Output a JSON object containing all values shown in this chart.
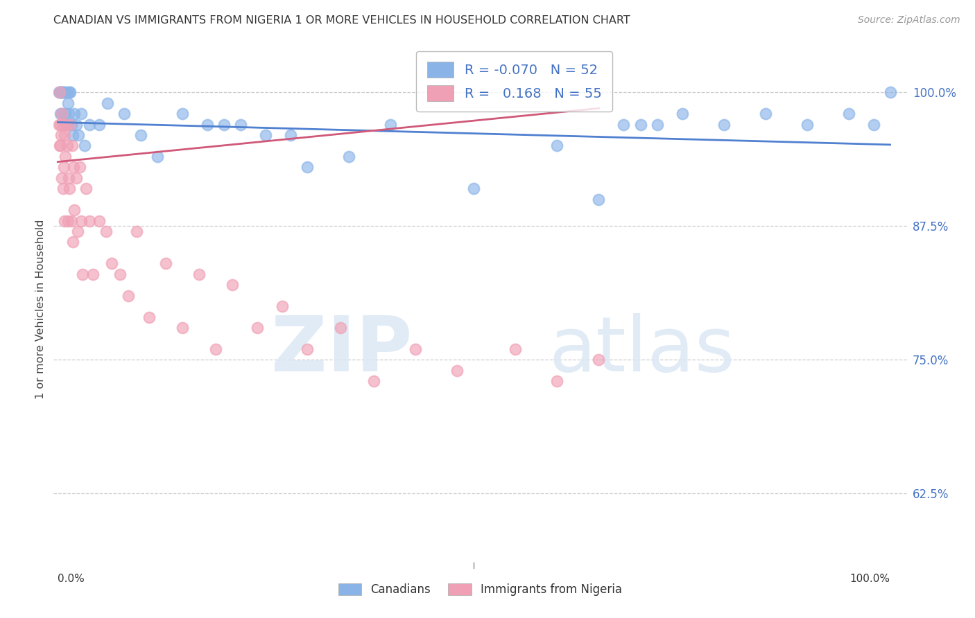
{
  "title": "CANADIAN VS IMMIGRANTS FROM NIGERIA 1 OR MORE VEHICLES IN HOUSEHOLD CORRELATION CHART",
  "source": "Source: ZipAtlas.com",
  "ylabel": "1 or more Vehicles in Household",
  "ytick_labels": [
    "62.5%",
    "75.0%",
    "87.5%",
    "100.0%"
  ],
  "ytick_vals": [
    0.625,
    0.75,
    0.875,
    1.0
  ],
  "legend_r_canadian": "-0.070",
  "legend_n_canadian": "52",
  "legend_r_nigerian": "0.168",
  "legend_n_nigerian": "55",
  "canadian_color": "#8ab4e8",
  "nigerian_color": "#f0a0b5",
  "canadian_line_color": "#5080d0",
  "nigerian_line_color": "#d05878",
  "watermark_zip": "ZIP",
  "watermark_atlas": "atlas",
  "background_color": "#ffffff",
  "can_x": [
    0.001,
    0.002,
    0.003,
    0.003,
    0.004,
    0.005,
    0.005,
    0.006,
    0.007,
    0.008,
    0.009,
    0.01,
    0.011,
    0.012,
    0.013,
    0.014,
    0.015,
    0.016,
    0.018,
    0.02,
    0.022,
    0.025,
    0.028,
    0.032,
    0.038,
    0.05,
    0.06,
    0.08,
    0.1,
    0.12,
    0.15,
    0.18,
    0.2,
    0.25,
    0.3,
    0.35,
    0.4,
    0.5,
    0.6,
    0.65,
    0.7,
    0.75,
    0.8,
    0.85,
    0.9,
    0.95,
    0.98,
    1.0,
    0.72,
    0.68,
    0.22,
    0.28
  ],
  "can_y": [
    1.0,
    1.0,
    1.0,
    0.98,
    1.0,
    1.0,
    0.98,
    1.0,
    1.0,
    1.0,
    0.98,
    0.97,
    1.0,
    0.99,
    0.98,
    1.0,
    1.0,
    0.97,
    0.96,
    0.98,
    0.97,
    0.96,
    0.98,
    0.95,
    0.97,
    0.97,
    0.99,
    0.98,
    0.96,
    0.94,
    0.98,
    0.97,
    0.97,
    0.96,
    0.93,
    0.94,
    0.97,
    0.91,
    0.95,
    0.9,
    0.97,
    0.98,
    0.97,
    0.98,
    0.97,
    0.98,
    0.97,
    1.0,
    0.97,
    0.97,
    0.97,
    0.96
  ],
  "nig_x": [
    0.001,
    0.002,
    0.002,
    0.003,
    0.003,
    0.004,
    0.005,
    0.005,
    0.006,
    0.006,
    0.007,
    0.008,
    0.008,
    0.009,
    0.01,
    0.011,
    0.012,
    0.013,
    0.014,
    0.015,
    0.016,
    0.017,
    0.018,
    0.019,
    0.02,
    0.022,
    0.024,
    0.026,
    0.028,
    0.03,
    0.034,
    0.038,
    0.042,
    0.05,
    0.058,
    0.065,
    0.075,
    0.085,
    0.095,
    0.11,
    0.13,
    0.15,
    0.17,
    0.19,
    0.21,
    0.24,
    0.27,
    0.3,
    0.34,
    0.38,
    0.43,
    0.48,
    0.55,
    0.6,
    0.65
  ],
  "nig_y": [
    0.97,
    0.95,
    1.0,
    0.95,
    0.97,
    0.96,
    0.92,
    0.98,
    0.91,
    0.97,
    0.93,
    0.96,
    0.88,
    0.94,
    0.97,
    0.95,
    0.88,
    0.92,
    0.91,
    0.97,
    0.88,
    0.95,
    0.86,
    0.93,
    0.89,
    0.92,
    0.87,
    0.93,
    0.88,
    0.83,
    0.91,
    0.88,
    0.83,
    0.88,
    0.87,
    0.84,
    0.83,
    0.81,
    0.87,
    0.79,
    0.84,
    0.78,
    0.83,
    0.76,
    0.82,
    0.78,
    0.8,
    0.76,
    0.78,
    0.73,
    0.76,
    0.74,
    0.76,
    0.73,
    0.75
  ],
  "can_line_x0": 0.0,
  "can_line_x1": 1.0,
  "can_line_y0": 0.972,
  "can_line_y1": 0.951,
  "nig_line_x0": 0.0,
  "nig_line_x1": 0.65,
  "nig_line_y0": 0.935,
  "nig_line_y1": 0.985,
  "xlim": [
    -0.005,
    1.02
  ],
  "ylim": [
    0.555,
    1.04
  ]
}
